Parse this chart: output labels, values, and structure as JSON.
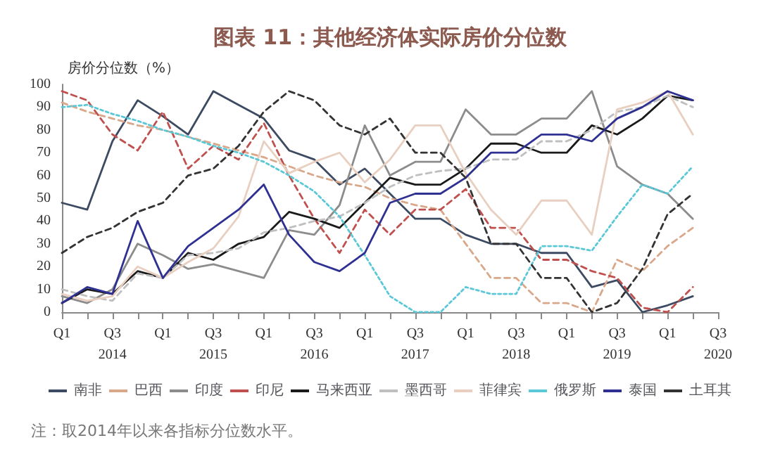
{
  "chart_data": {
    "type": "line",
    "title": "图表 11：其他经济体实际房价分位数",
    "ylabel": "房价分位数（%）",
    "categories": [
      "Q1",
      null,
      "Q3\n2014",
      null,
      "Q1",
      null,
      "Q3\n2015",
      null,
      "Q1",
      null,
      "Q3\n2016",
      null,
      "Q1",
      null,
      "Q3\n2017",
      null,
      "Q1",
      null,
      "Q3\n2018",
      null,
      "Q1",
      null,
      "Q3\n2019",
      null,
      "Q1",
      null,
      "Q3\n2020"
    ],
    "series": [
      {
        "name": "南非",
        "color": "#3c4a62",
        "line_style": "solid",
        "values": [
          48,
          45,
          75,
          93,
          86,
          78,
          97,
          91,
          85,
          71,
          67,
          56,
          63,
          52,
          41,
          41,
          34,
          30,
          30,
          26,
          26,
          11,
          14,
          0,
          3,
          7,
          null
        ]
      },
      {
        "name": "巴西",
        "color": "#d9a78a",
        "line_style": "dashed",
        "values": [
          92,
          88,
          85,
          82,
          80,
          77,
          74,
          71,
          68,
          64,
          60,
          57,
          55,
          50,
          47,
          45,
          30,
          15,
          15,
          4,
          4,
          0,
          23,
          18,
          29,
          37,
          null
        ]
      },
      {
        "name": "印度",
        "color": "#8c8c8c",
        "line_style": "solid",
        "values": [
          7,
          4,
          10,
          30,
          25,
          19,
          21,
          18,
          15,
          36,
          34,
          47,
          82,
          60,
          66,
          66,
          89,
          78,
          78,
          85,
          85,
          97,
          64,
          56,
          52,
          41,
          null
        ]
      },
      {
        "name": "印尼",
        "color": "#c0504d",
        "line_style": "dashed",
        "values": [
          97,
          93,
          78,
          71,
          88,
          63,
          73,
          67,
          83,
          60,
          41,
          26,
          45,
          34,
          45,
          45,
          54,
          37,
          37,
          23,
          23,
          18,
          15,
          2,
          0,
          11,
          null
        ]
      },
      {
        "name": "马来西亚",
        "color": "#1a1a1a",
        "line_style": "solid",
        "values": [
          4,
          10,
          8,
          18,
          15,
          26,
          23,
          30,
          33,
          44,
          41,
          37,
          48,
          59,
          56,
          56,
          63,
          74,
          74,
          70,
          70,
          82,
          78,
          85,
          95,
          93,
          null
        ]
      },
      {
        "name": "墨西哥",
        "color": "#bfbfbf",
        "line_style": "dashed",
        "values": [
          10,
          7,
          5,
          17,
          15,
          25,
          26,
          28,
          35,
          37,
          40,
          42,
          48,
          55,
          60,
          62,
          63,
          67,
          67,
          75,
          75,
          80,
          88,
          90,
          95,
          90,
          null
        ]
      },
      {
        "name": "菲律宾",
        "color": "#e8cfc0",
        "line_style": "solid",
        "values": [
          8,
          5,
          7,
          20,
          15,
          22,
          28,
          42,
          75,
          61,
          66,
          70,
          57,
          67,
          82,
          82,
          61,
          45,
          34,
          49,
          49,
          34,
          89,
          92,
          97,
          78,
          null
        ]
      },
      {
        "name": "俄罗斯",
        "color": "#5bc8d8",
        "line_style": "dotted",
        "values": [
          90,
          91,
          87,
          84,
          80,
          77,
          73,
          70,
          66,
          60,
          53,
          42,
          25,
          7,
          0,
          0,
          11,
          8,
          8,
          29,
          29,
          27,
          42,
          56,
          52,
          64,
          null
        ]
      },
      {
        "name": "泰国",
        "color": "#2e3192",
        "line_style": "solid",
        "values": [
          4,
          11,
          8,
          40,
          15,
          29,
          37,
          45,
          56,
          34,
          22,
          18,
          26,
          48,
          52,
          52,
          59,
          70,
          70,
          78,
          78,
          75,
          85,
          90,
          97,
          93,
          null
        ]
      },
      {
        "name": "土耳其",
        "color": "#333333",
        "line_style": "dashed",
        "values": [
          26,
          33,
          37,
          44,
          48,
          60,
          63,
          73,
          88,
          97,
          93,
          82,
          78,
          85,
          70,
          70,
          59,
          30,
          30,
          15,
          15,
          0,
          4,
          19,
          43,
          52,
          null
        ]
      }
    ],
    "ylim": [
      0,
      100
    ],
    "yticks": [
      0,
      10,
      20,
      30,
      40,
      50,
      60,
      70,
      80,
      90,
      100
    ],
    "grid": false,
    "legend": "bottom",
    "marker": "none",
    "annotations": [
      "注：取2014年以来各指标分位数水平。"
    ]
  }
}
